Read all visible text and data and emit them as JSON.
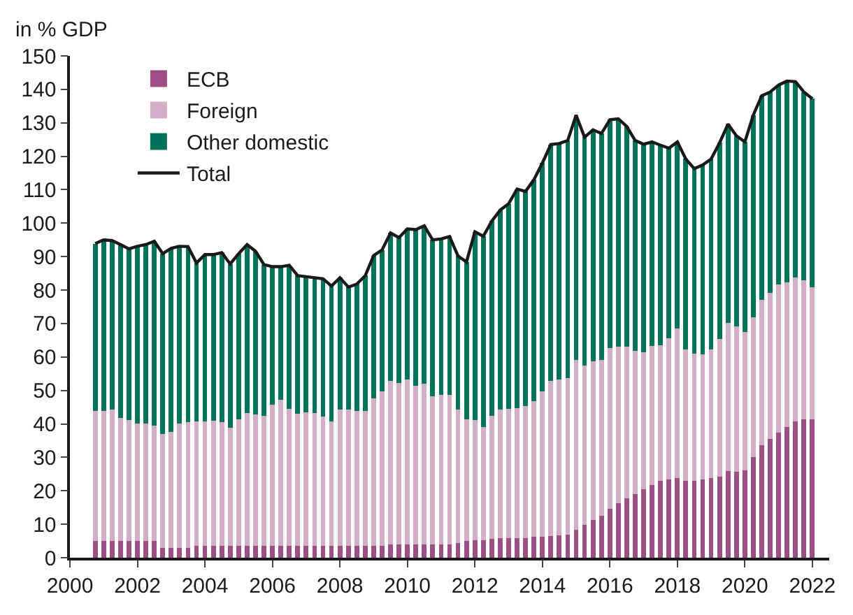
{
  "chart_data": {
    "type": "bar",
    "stacked": true,
    "ylabel": "in % GDP",
    "legend": "top left",
    "x": [
      2000.75,
      2001,
      2001.25,
      2001.5,
      2001.75,
      2002,
      2002.25,
      2002.5,
      2002.75,
      2003,
      2003.25,
      2003.5,
      2003.75,
      2004,
      2004.25,
      2004.5,
      2004.75,
      2005,
      2005.25,
      2005.5,
      2005.75,
      2006,
      2006.25,
      2006.5,
      2006.75,
      2007,
      2007.25,
      2007.5,
      2007.75,
      2008,
      2008.25,
      2008.5,
      2008.75,
      2009,
      2009.25,
      2009.5,
      2009.75,
      2010,
      2010.25,
      2010.5,
      2010.75,
      2011,
      2011.25,
      2011.5,
      2011.75,
      2012,
      2012.25,
      2012.5,
      2012.75,
      2013,
      2013.25,
      2013.5,
      2013.75,
      2014,
      2014.25,
      2014.5,
      2014.75,
      2015,
      2015.25,
      2015.5,
      2015.75,
      2016,
      2016.25,
      2016.5,
      2016.75,
      2017,
      2017.25,
      2017.5,
      2017.75,
      2018,
      2018.25,
      2018.5,
      2018.75,
      2019,
      2019.25,
      2019.5,
      2019.75,
      2020,
      2020.25,
      2020.5,
      2020.75,
      2021,
      2021.25,
      2021.5,
      2021.75,
      2022
    ],
    "xlim": [
      2000,
      2022.5
    ],
    "xticks": [
      2000,
      2002,
      2004,
      2006,
      2008,
      2010,
      2012,
      2014,
      2016,
      2018,
      2020,
      2022
    ],
    "ylim": [
      0,
      150
    ],
    "yticks": [
      0,
      10,
      20,
      30,
      40,
      50,
      60,
      70,
      80,
      90,
      100,
      110,
      120,
      130,
      140,
      150
    ],
    "series": [
      {
        "name": "ECB",
        "color": "#9c4f85",
        "values": [
          5.0,
          5.0,
          5.0,
          5.0,
          5.0,
          5.0,
          5.0,
          5.0,
          3.0,
          3.0,
          3.0,
          3.0,
          3.6,
          3.6,
          3.6,
          3.6,
          3.6,
          3.6,
          3.6,
          3.6,
          3.6,
          3.6,
          3.6,
          3.6,
          3.6,
          3.6,
          3.6,
          3.6,
          3.6,
          3.6,
          3.6,
          3.6,
          3.6,
          3.6,
          3.6,
          3.9,
          3.9,
          4.0,
          4.0,
          4.0,
          4.0,
          4.0,
          4.0,
          4.4,
          5.0,
          5.2,
          5.2,
          5.7,
          5.9,
          5.9,
          5.9,
          5.9,
          6.2,
          6.2,
          6.4,
          6.6,
          6.9,
          8.3,
          9.8,
          11.2,
          12.6,
          14.6,
          16.3,
          17.7,
          19.1,
          20.4,
          21.8,
          22.9,
          23.5,
          23.9,
          22.9,
          22.9,
          23.5,
          23.8,
          24.3,
          26.0,
          25.7,
          26.2,
          30.1,
          33.6,
          35.6,
          37.3,
          39.0,
          40.7,
          41.4,
          41.4
        ]
      },
      {
        "name": "Foreign",
        "color": "#d3aec8",
        "values": [
          38.9,
          38.9,
          39.3,
          36.7,
          36.2,
          35.1,
          35.1,
          34.5,
          34.0,
          34.7,
          37.2,
          37.6,
          37.1,
          37.1,
          37.4,
          36.9,
          35.2,
          37.8,
          39.6,
          39.2,
          38.9,
          42.1,
          43.6,
          41.0,
          39.4,
          39.8,
          39.6,
          38.7,
          37.1,
          40.7,
          40.7,
          40.3,
          40.3,
          44.1,
          46.1,
          48.9,
          48.3,
          49.3,
          47.4,
          48.0,
          44.3,
          44.6,
          44.6,
          39.8,
          36.4,
          36.0,
          33.9,
          36.8,
          38.3,
          38.7,
          38.9,
          39.4,
          40.5,
          43.5,
          46.4,
          46.7,
          46.7,
          50.8,
          47.7,
          47.6,
          46.5,
          48.0,
          46.7,
          45.3,
          42.8,
          41.1,
          41.5,
          40.6,
          42.1,
          44.6,
          39.3,
          38.1,
          37.4,
          38.5,
          41.0,
          44.2,
          43.4,
          41.2,
          41.7,
          43.5,
          43.5,
          44.3,
          43.3,
          43.0,
          41.5,
          39.4
        ]
      },
      {
        "name": "Other domestic",
        "color": "#00735a",
        "values": [
          50.0,
          51.1,
          50.5,
          51.9,
          51.1,
          53.0,
          53.5,
          55.1,
          53.9,
          54.8,
          52.9,
          52.4,
          47.4,
          49.9,
          49.6,
          50.7,
          49.0,
          49.5,
          50.4,
          48.8,
          45.1,
          41.3,
          39.8,
          42.8,
          41.3,
          40.6,
          40.5,
          41.1,
          40.5,
          39.4,
          36.6,
          37.9,
          40.4,
          42.6,
          42.3,
          44.3,
          43.5,
          45.0,
          46.7,
          47.2,
          46.7,
          46.7,
          47.4,
          46.0,
          47.0,
          56.2,
          57.0,
          58.1,
          59.7,
          61.2,
          65.4,
          64.2,
          66.3,
          68.3,
          70.7,
          70.5,
          71.1,
          73.2,
          68.2,
          69.1,
          67.7,
          68.3,
          68.2,
          65.9,
          62.8,
          62.1,
          61.0,
          59.8,
          56.8,
          55.8,
          57.0,
          55.3,
          56.5,
          56.9,
          58.7,
          59.4,
          57.0,
          56.9,
          60.5,
          61.0,
          60.1,
          59.7,
          60.2,
          58.6,
          56.3,
          56.4
        ]
      },
      {
        "name": "Total",
        "type": "line",
        "color": "#1a1a1a",
        "values": [
          93.9,
          95.0,
          94.8,
          93.6,
          92.3,
          93.1,
          93.6,
          94.6,
          90.9,
          92.5,
          93.1,
          93.0,
          88.1,
          90.6,
          90.6,
          91.2,
          87.8,
          90.9,
          93.6,
          91.6,
          87.6,
          87.0,
          87.0,
          87.4,
          84.3,
          84.0,
          83.7,
          83.4,
          81.2,
          83.7,
          80.9,
          81.8,
          84.3,
          90.3,
          92.0,
          97.1,
          95.7,
          98.3,
          98.1,
          99.2,
          95.0,
          95.3,
          96.0,
          90.2,
          88.4,
          97.4,
          96.1,
          100.6,
          103.9,
          105.8,
          110.2,
          109.5,
          113.0,
          118.0,
          123.5,
          123.8,
          124.7,
          132.3,
          125.7,
          127.9,
          126.8,
          130.9,
          131.2,
          128.9,
          124.7,
          123.6,
          124.3,
          123.3,
          122.4,
          124.3,
          119.2,
          116.3,
          117.4,
          119.2,
          124.0,
          129.6,
          126.1,
          124.3,
          132.3,
          138.1,
          139.2,
          141.3,
          142.5,
          142.3,
          139.2,
          137.2
        ]
      }
    ]
  }
}
